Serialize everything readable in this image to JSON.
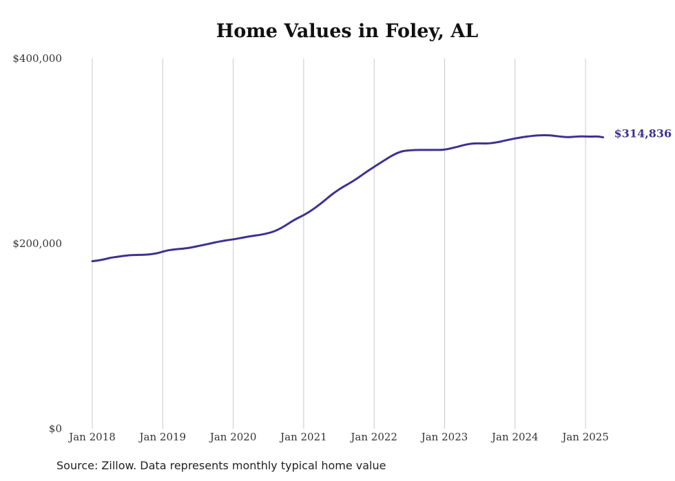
{
  "chart_data": {
    "type": "line",
    "title": "Home Values in Foley, AL",
    "xlabel": "",
    "ylabel": "",
    "ylim": [
      0,
      400000
    ],
    "xlim": [
      "2018-01",
      "2025-04"
    ],
    "grid": "vertical",
    "y_ticks": [
      {
        "value": 0,
        "label": "$0"
      },
      {
        "value": 200000,
        "label": "$200,000"
      },
      {
        "value": 400000,
        "label": "$400,000"
      }
    ],
    "x_ticks": [
      {
        "value": "2018-01",
        "label": "Jan 2018"
      },
      {
        "value": "2019-01",
        "label": "Jan 2019"
      },
      {
        "value": "2020-01",
        "label": "Jan 2020"
      },
      {
        "value": "2021-01",
        "label": "Jan 2021"
      },
      {
        "value": "2022-01",
        "label": "Jan 2022"
      },
      {
        "value": "2023-01",
        "label": "Jan 2023"
      },
      {
        "value": "2024-01",
        "label": "Jan 2024"
      },
      {
        "value": "2025-01",
        "label": "Jan 2025"
      }
    ],
    "series": [
      {
        "color": "#3d3192",
        "x": [
          "2018-01",
          "2018-02",
          "2018-03",
          "2018-04",
          "2018-05",
          "2018-06",
          "2018-07",
          "2018-08",
          "2018-09",
          "2018-10",
          "2018-11",
          "2018-12",
          "2019-01",
          "2019-02",
          "2019-03",
          "2019-04",
          "2019-05",
          "2019-06",
          "2019-07",
          "2019-08",
          "2019-09",
          "2019-10",
          "2019-11",
          "2019-12",
          "2020-01",
          "2020-02",
          "2020-03",
          "2020-04",
          "2020-05",
          "2020-06",
          "2020-07",
          "2020-08",
          "2020-09",
          "2020-10",
          "2020-11",
          "2020-12",
          "2021-01",
          "2021-02",
          "2021-03",
          "2021-04",
          "2021-05",
          "2021-06",
          "2021-07",
          "2021-08",
          "2021-09",
          "2021-10",
          "2021-11",
          "2021-12",
          "2022-01",
          "2022-02",
          "2022-03",
          "2022-04",
          "2022-05",
          "2022-06",
          "2022-07",
          "2022-08",
          "2022-09",
          "2022-10",
          "2022-11",
          "2022-12",
          "2023-01",
          "2023-02",
          "2023-03",
          "2023-04",
          "2023-05",
          "2023-06",
          "2023-07",
          "2023-08",
          "2023-09",
          "2023-10",
          "2023-11",
          "2023-12",
          "2024-01",
          "2024-02",
          "2024-03",
          "2024-04",
          "2024-05",
          "2024-06",
          "2024-07",
          "2024-08",
          "2024-09",
          "2024-10",
          "2024-11",
          "2024-12",
          "2025-01",
          "2025-02",
          "2025-03",
          "2025-04"
        ],
        "values": [
          181000,
          181800,
          183000,
          184500,
          185500,
          186400,
          187200,
          187600,
          187800,
          188000,
          188600,
          189600,
          191300,
          192800,
          193700,
          194300,
          195000,
          196000,
          197300,
          198600,
          200000,
          201400,
          202600,
          203700,
          204600,
          205700,
          206900,
          208000,
          208900,
          210000,
          211400,
          213400,
          216300,
          220000,
          224000,
          227600,
          230800,
          234600,
          238900,
          243700,
          248900,
          254000,
          258400,
          262300,
          266000,
          270000,
          274400,
          278800,
          282900,
          287000,
          291000,
          294800,
          298000,
          300000,
          300700,
          301100,
          301200,
          301200,
          301200,
          301200,
          301600,
          302800,
          304300,
          306000,
          307400,
          308200,
          308300,
          308200,
          308600,
          309600,
          310900,
          312300,
          313600,
          314700,
          315600,
          316400,
          316900,
          317100,
          316900,
          316200,
          315500,
          315100,
          315400,
          315800,
          315700,
          315600,
          315700,
          314836
        ],
        "end_label": "$314,836"
      }
    ],
    "source": "Source: Zillow. Data represents monthly typical home value"
  }
}
